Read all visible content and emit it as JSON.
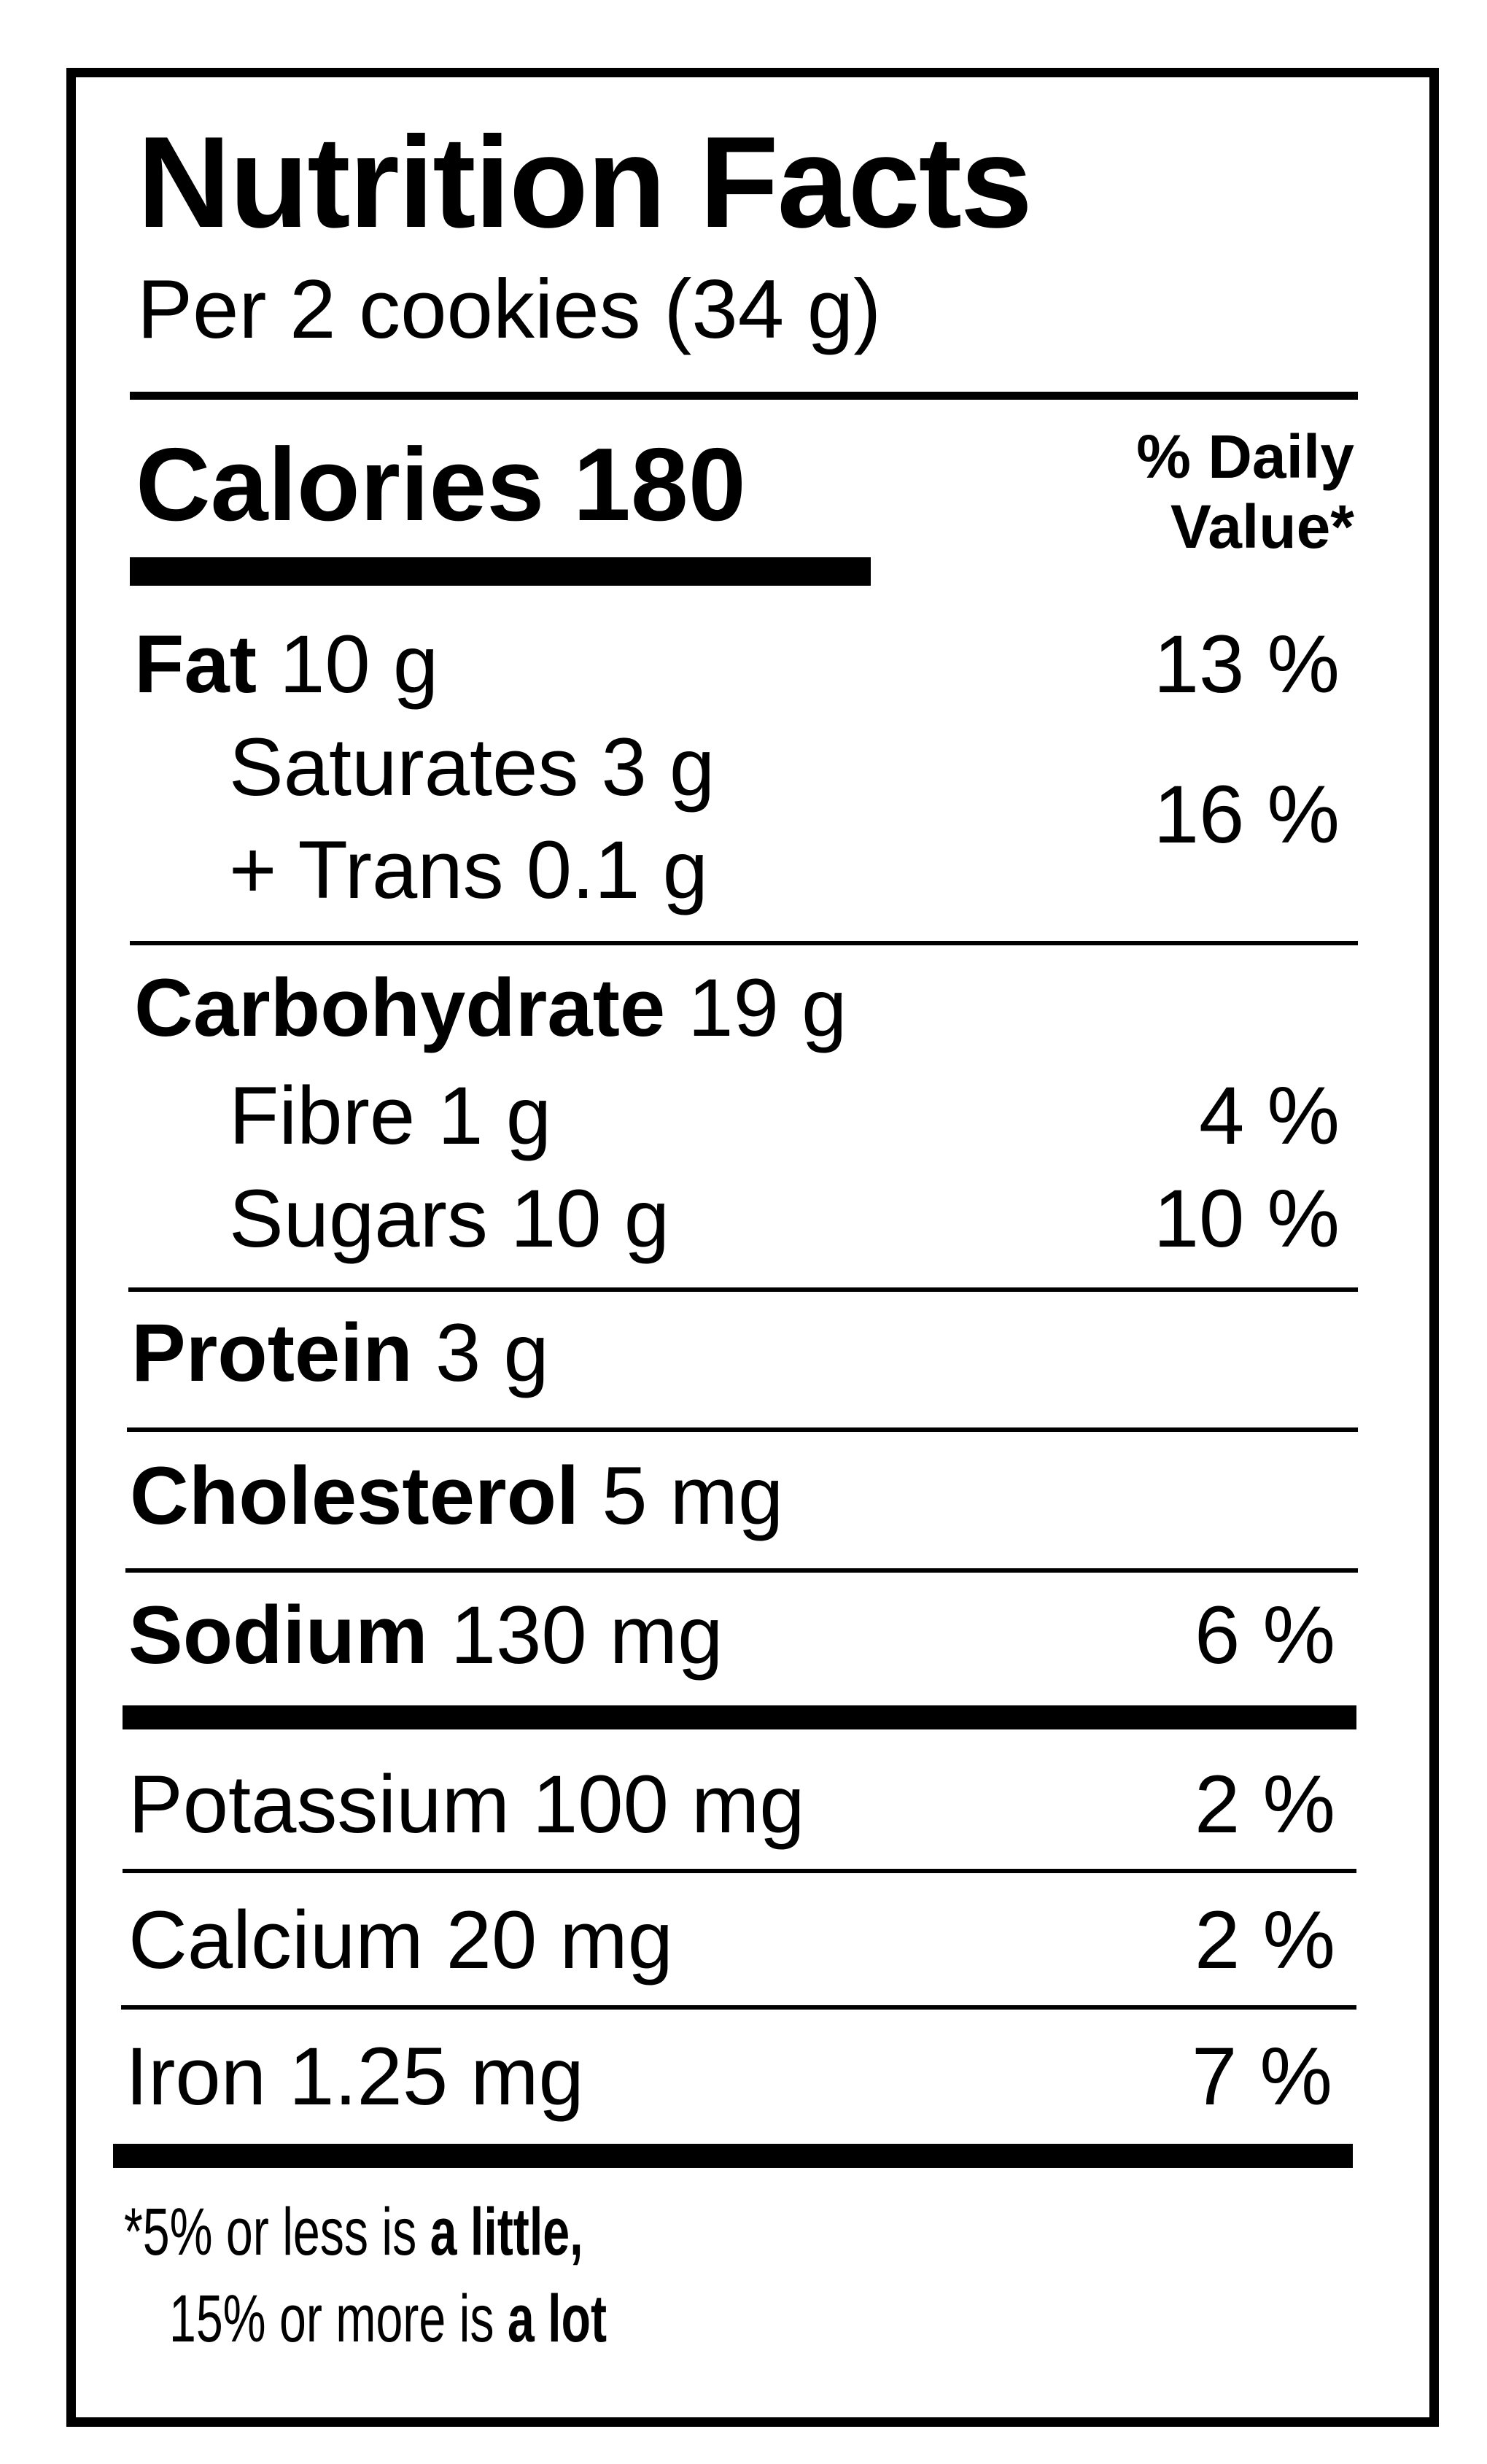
{
  "title": "Nutrition Facts",
  "serving": "Per 2 cookies (34 g)",
  "calories": {
    "label": "Calories",
    "value": "180"
  },
  "daily_value_header": {
    "line1": "% Daily",
    "line2": "Value*"
  },
  "nutrients": {
    "fat": {
      "name": "Fat",
      "amount": "10 g",
      "dv": "13 %"
    },
    "saturates": {
      "name": "Saturates",
      "amount": "3 g"
    },
    "trans": {
      "name": "+ Trans",
      "amount": "0.1 g"
    },
    "sat_trans_dv": "16 %",
    "carbohydrate": {
      "name": "Carbohydrate",
      "amount": "19 g"
    },
    "fibre": {
      "name": "Fibre",
      "amount": "1 g",
      "dv": "4 %"
    },
    "sugars": {
      "name": "Sugars",
      "amount": "10 g",
      "dv": "10 %"
    },
    "protein": {
      "name": "Protein",
      "amount": "3 g"
    },
    "cholesterol": {
      "name": "Cholesterol",
      "amount": "5 mg"
    },
    "sodium": {
      "name": "Sodium",
      "amount": "130 mg",
      "dv": "6 %"
    },
    "potassium": {
      "name": "Potassium",
      "amount": "100 mg",
      "dv": "2 %"
    },
    "calcium": {
      "name": "Calcium",
      "amount": "20 mg",
      "dv": "2 %"
    },
    "iron": {
      "name": "Iron",
      "amount": "1.25 mg",
      "dv": "7 %"
    }
  },
  "footnote": {
    "line1_pre": "*5% or less is ",
    "line1_bold": "a little",
    "line1_post": ",",
    "line2_pre": "15% or more is ",
    "line2_bold": "a lot"
  }
}
